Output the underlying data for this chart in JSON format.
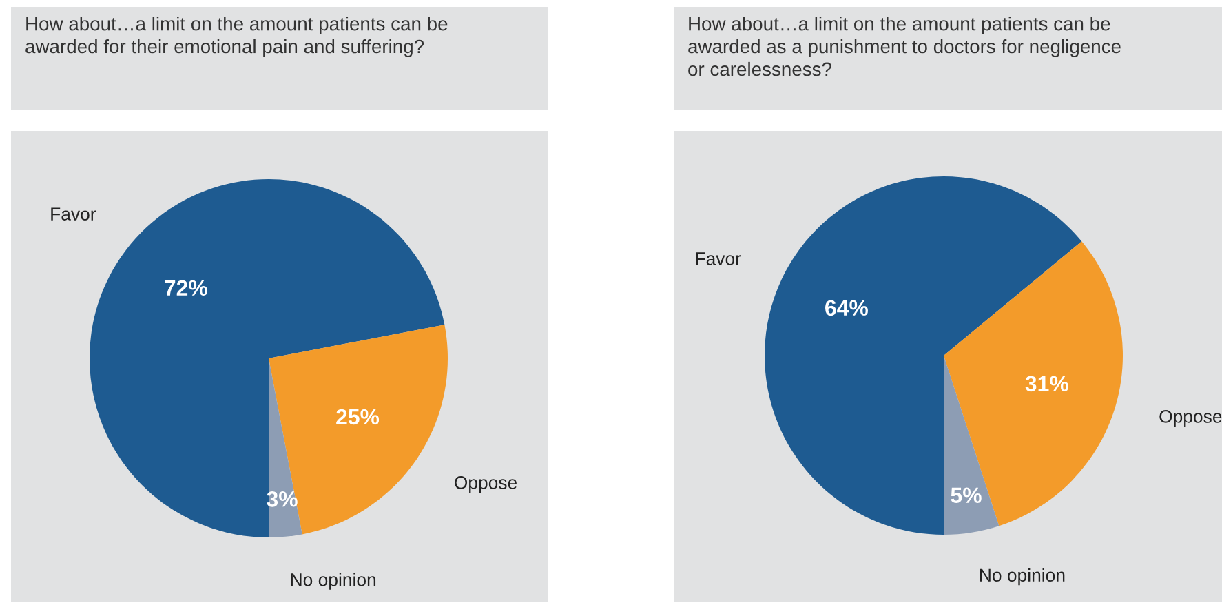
{
  "chart_data": [
    {
      "type": "pie",
      "title": "How about…a limit on the amount patients can be\nawarded for their emotional pain and suffering?",
      "categories": [
        "Favor",
        "Oppose",
        "No opinion"
      ],
      "values": [
        72,
        25,
        3
      ],
      "value_labels": [
        "72%",
        "25%",
        "3%"
      ],
      "colors": [
        "#1e5b91",
        "#f39b2a",
        "#8d9db4"
      ]
    },
    {
      "type": "pie",
      "title": "How about…a limit on the amount patients can be\nawarded as a punishment to doctors for negligence\nor carelessness?",
      "categories": [
        "Favor",
        "Oppose",
        "No opinion"
      ],
      "values": [
        64,
        31,
        5
      ],
      "value_labels": [
        "64%",
        "31%",
        "5%"
      ],
      "colors": [
        "#1e5b91",
        "#f39b2a",
        "#8d9db4"
      ]
    }
  ]
}
